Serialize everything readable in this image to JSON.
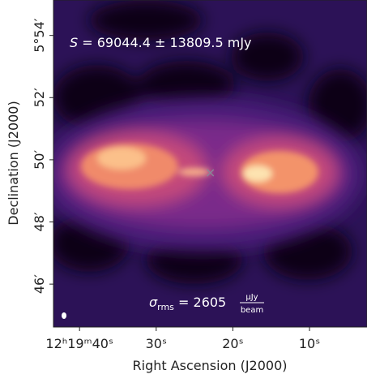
{
  "chart_data": {
    "type": "image",
    "xlabel": "Right Ascension (J2000)",
    "ylabel": "Declination (J2000)",
    "xlim": [
      43.4,
      2.5
    ],
    "ylim": [
      44.62,
      55.14
    ],
    "xticks": [
      {
        "value": 40,
        "label": "12ʰ19ᵐ40ˢ"
      },
      {
        "value": 30,
        "label": "30ˢ"
      },
      {
        "value": 20,
        "label": "20ˢ"
      },
      {
        "value": 10,
        "label": "10ˢ"
      }
    ],
    "yticks": [
      {
        "value": 54,
        "label": "5°54′"
      },
      {
        "value": 52,
        "label": "52′"
      },
      {
        "value": 50,
        "label": "50′"
      },
      {
        "value": 48,
        "label": "48′"
      },
      {
        "value": 46,
        "label": "46′"
      }
    ],
    "flux_annotation": {
      "symbol": "S",
      "text": "= 69044.4 ± 13809.5 mJy"
    },
    "rms_annotation": {
      "symbol": "σ",
      "subscript": "rms",
      "text": "= 2605",
      "unit_top": "μJy",
      "unit_bottom": "beam"
    }
  }
}
